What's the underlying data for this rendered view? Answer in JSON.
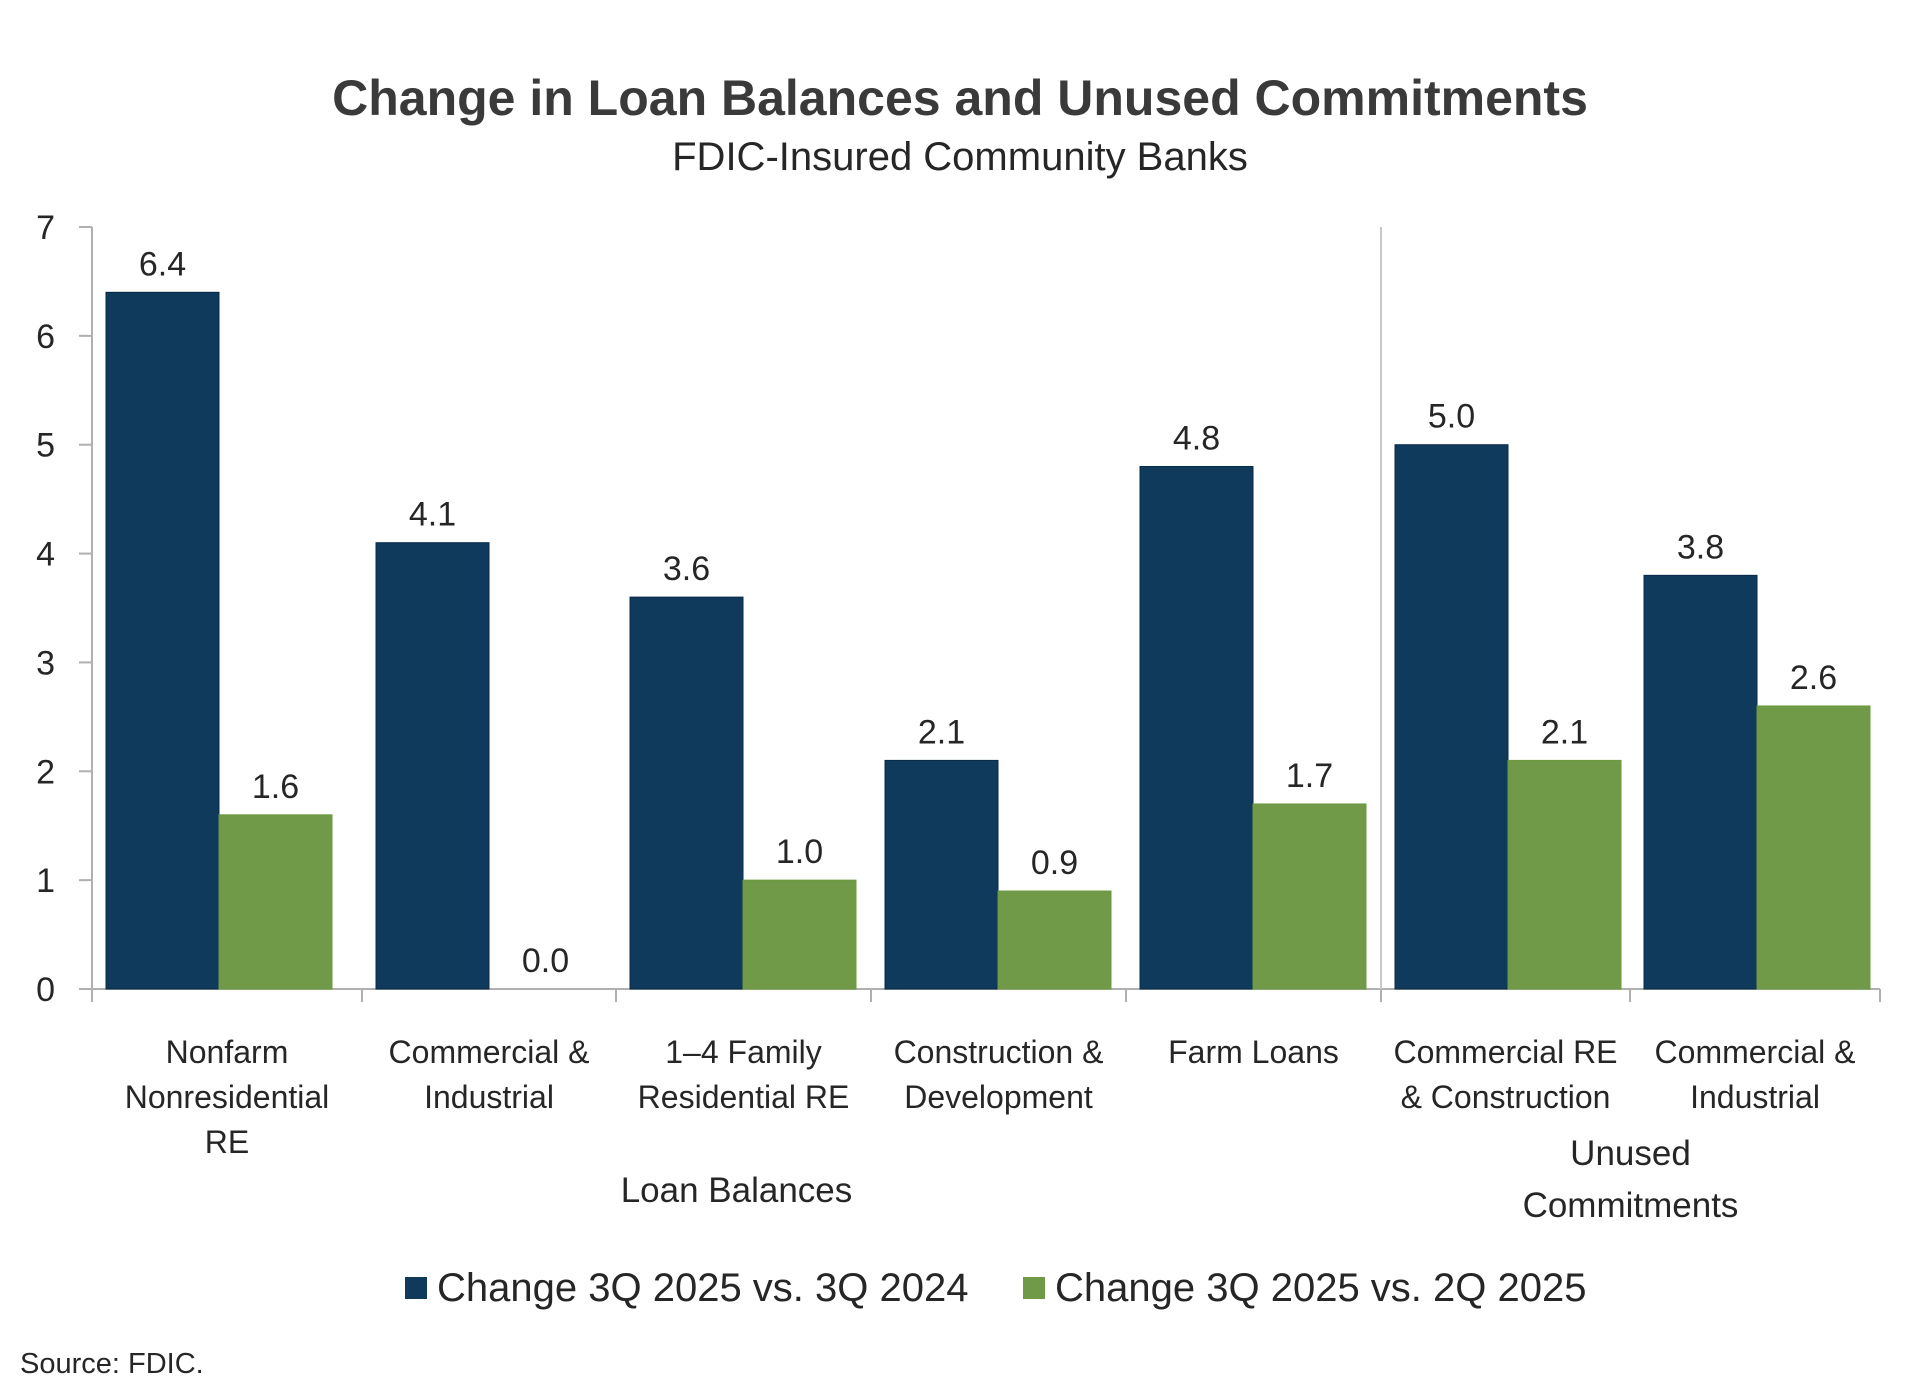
{
  "chart_data": {
    "type": "bar",
    "title": "Change in Loan Balances and Unused Commitments",
    "subtitle": "FDIC-Insured Community Banks",
    "xlabel": "",
    "ylabel": "",
    "ylim": [
      0,
      7
    ],
    "yticks": [
      "0",
      "1",
      "2",
      "3",
      "4",
      "5",
      "6",
      "7"
    ],
    "grid": false,
    "categories": [
      [
        "Nonfarm",
        "Nonresidential",
        "RE"
      ],
      [
        "Commercial &",
        "Industrial"
      ],
      [
        "1–4 Family",
        "Residential RE"
      ],
      [
        "Construction &",
        "Development"
      ],
      [
        "Farm Loans"
      ],
      [
        "Commercial RE",
        "& Construction"
      ],
      [
        "Commercial &",
        "Industrial"
      ]
    ],
    "groups": [
      {
        "label": [
          "Loan Balances"
        ],
        "categories": [
          0,
          1,
          2,
          3,
          4
        ]
      },
      {
        "label": [
          "Unused",
          "Commitments"
        ],
        "categories": [
          5,
          6
        ]
      }
    ],
    "series": [
      {
        "name": "Change 3Q 2025 vs. 3Q 2024",
        "color": "#0f3a5c",
        "values": [
          6.4,
          4.1,
          3.6,
          2.1,
          4.8,
          5.0,
          3.8
        ],
        "labels": [
          "6.4",
          "4.1",
          "3.6",
          "2.1",
          "4.8",
          "5.0",
          "3.8"
        ]
      },
      {
        "name": "Change 3Q 2025 vs. 2Q 2025",
        "color": "#709948",
        "values": [
          1.6,
          0.0,
          1.0,
          0.9,
          1.7,
          2.1,
          2.6
        ],
        "labels": [
          "1.6",
          "0.0",
          "1.0",
          "0.9",
          "1.7",
          "2.1",
          "2.6"
        ]
      }
    ],
    "legend": "bottom-center",
    "source": "Source: FDIC."
  }
}
